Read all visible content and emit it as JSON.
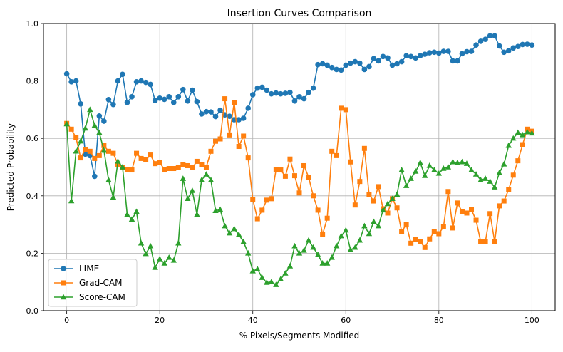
{
  "chart_data": {
    "type": "line",
    "title": "Insertion Curves Comparison",
    "xlabel": "% Pixels/Segments Modified",
    "ylabel": "Predicted Probability",
    "xlim": [
      -5,
      105
    ],
    "ylim": [
      0,
      1
    ],
    "x_ticks": [
      0,
      20,
      40,
      60,
      80,
      100
    ],
    "y_ticks": [
      0.0,
      0.2,
      0.4,
      0.6,
      0.8,
      1.0
    ],
    "x_tick_labels": [
      "0",
      "20",
      "40",
      "60",
      "80",
      "100"
    ],
    "y_tick_labels": [
      "0.0",
      "0.2",
      "0.4",
      "0.6",
      "0.8",
      "1.0"
    ],
    "grid": true,
    "legend_position": "lower-left",
    "x": [
      0,
      1,
      2,
      3,
      4,
      5,
      6,
      7,
      8,
      9,
      10,
      11,
      12,
      13,
      14,
      15,
      16,
      17,
      18,
      19,
      20,
      21,
      22,
      23,
      24,
      25,
      26,
      27,
      28,
      29,
      30,
      31,
      32,
      33,
      34,
      35,
      36,
      37,
      38,
      39,
      40,
      41,
      42,
      43,
      44,
      45,
      46,
      47,
      48,
      49,
      50,
      51,
      52,
      53,
      54,
      55,
      56,
      57,
      58,
      59,
      60,
      61,
      62,
      63,
      64,
      65,
      66,
      67,
      68,
      69,
      70,
      71,
      72,
      73,
      74,
      75,
      76,
      77,
      78,
      79,
      80,
      81,
      82,
      83,
      84,
      85,
      86,
      87,
      88,
      89,
      90,
      91,
      92,
      93,
      94,
      95,
      96,
      97,
      98,
      99,
      100
    ],
    "series": [
      {
        "name": "LIME",
        "color": "#1f77b4",
        "marker": "circle",
        "values": [
          0.825,
          0.797,
          0.8,
          0.72,
          0.545,
          0.54,
          0.468,
          0.678,
          0.66,
          0.735,
          0.718,
          0.8,
          0.823,
          0.725,
          0.745,
          0.797,
          0.8,
          0.795,
          0.788,
          0.732,
          0.74,
          0.736,
          0.745,
          0.725,
          0.745,
          0.77,
          0.73,
          0.768,
          0.728,
          0.685,
          0.693,
          0.692,
          0.676,
          0.698,
          0.682,
          0.677,
          0.665,
          0.665,
          0.67,
          0.705,
          0.752,
          0.775,
          0.778,
          0.768,
          0.755,
          0.758,
          0.755,
          0.757,
          0.76,
          0.73,
          0.745,
          0.738,
          0.76,
          0.775,
          0.857,
          0.86,
          0.855,
          0.847,
          0.84,
          0.838,
          0.855,
          0.862,
          0.867,
          0.862,
          0.84,
          0.85,
          0.878,
          0.87,
          0.885,
          0.88,
          0.855,
          0.86,
          0.867,
          0.888,
          0.885,
          0.88,
          0.888,
          0.893,
          0.898,
          0.9,
          0.897,
          0.903,
          0.903,
          0.87,
          0.87,
          0.895,
          0.902,
          0.903,
          0.925,
          0.938,
          0.945,
          0.957,
          0.957,
          0.922,
          0.9,
          0.905,
          0.915,
          0.92,
          0.927,
          0.928,
          0.925
        ]
      },
      {
        "name": "Grad-CAM",
        "color": "#ff7f0e",
        "marker": "square",
        "values": [
          0.652,
          0.632,
          0.602,
          0.532,
          0.562,
          0.555,
          0.53,
          0.54,
          0.575,
          0.555,
          0.548,
          0.51,
          0.498,
          0.492,
          0.49,
          0.548,
          0.53,
          0.525,
          0.542,
          0.512,
          0.515,
          0.492,
          0.495,
          0.495,
          0.5,
          0.508,
          0.505,
          0.498,
          0.52,
          0.508,
          0.5,
          0.555,
          0.59,
          0.598,
          0.738,
          0.612,
          0.725,
          0.572,
          0.608,
          0.532,
          0.388,
          0.32,
          0.35,
          0.385,
          0.39,
          0.492,
          0.49,
          0.468,
          0.528,
          0.47,
          0.41,
          0.505,
          0.465,
          0.4,
          0.35,
          0.265,
          0.322,
          0.555,
          0.54,
          0.705,
          0.7,
          0.518,
          0.368,
          0.45,
          0.565,
          0.405,
          0.382,
          0.432,
          0.355,
          0.34,
          0.39,
          0.358,
          0.275,
          0.3,
          0.235,
          0.248,
          0.24,
          0.22,
          0.25,
          0.275,
          0.268,
          0.292,
          0.415,
          0.288,
          0.375,
          0.345,
          0.34,
          0.352,
          0.315,
          0.24,
          0.24,
          0.338,
          0.24,
          0.365,
          0.382,
          0.422,
          0.472,
          0.522,
          0.578,
          0.632,
          0.625
        ]
      },
      {
        "name": "Score-CAM",
        "color": "#2ca02c",
        "marker": "triangle-up",
        "values": [
          0.65,
          0.382,
          0.555,
          0.59,
          0.635,
          0.7,
          0.645,
          0.62,
          0.558,
          0.455,
          0.395,
          0.52,
          0.5,
          0.335,
          0.318,
          0.345,
          0.235,
          0.198,
          0.225,
          0.15,
          0.18,
          0.165,
          0.185,
          0.175,
          0.235,
          0.46,
          0.39,
          0.418,
          0.335,
          0.455,
          0.475,
          0.455,
          0.348,
          0.352,
          0.295,
          0.27,
          0.285,
          0.265,
          0.24,
          0.2,
          0.138,
          0.145,
          0.115,
          0.098,
          0.1,
          0.09,
          0.11,
          0.13,
          0.155,
          0.225,
          0.2,
          0.21,
          0.245,
          0.22,
          0.195,
          0.165,
          0.165,
          0.185,
          0.225,
          0.26,
          0.28,
          0.212,
          0.22,
          0.245,
          0.295,
          0.268,
          0.31,
          0.295,
          0.35,
          0.372,
          0.39,
          0.405,
          0.49,
          0.435,
          0.46,
          0.485,
          0.515,
          0.47,
          0.505,
          0.49,
          0.478,
          0.495,
          0.5,
          0.518,
          0.515,
          0.518,
          0.512,
          0.49,
          0.475,
          0.455,
          0.46,
          0.45,
          0.43,
          0.48,
          0.51,
          0.575,
          0.6,
          0.62,
          0.612,
          0.622,
          0.618
        ]
      }
    ]
  }
}
